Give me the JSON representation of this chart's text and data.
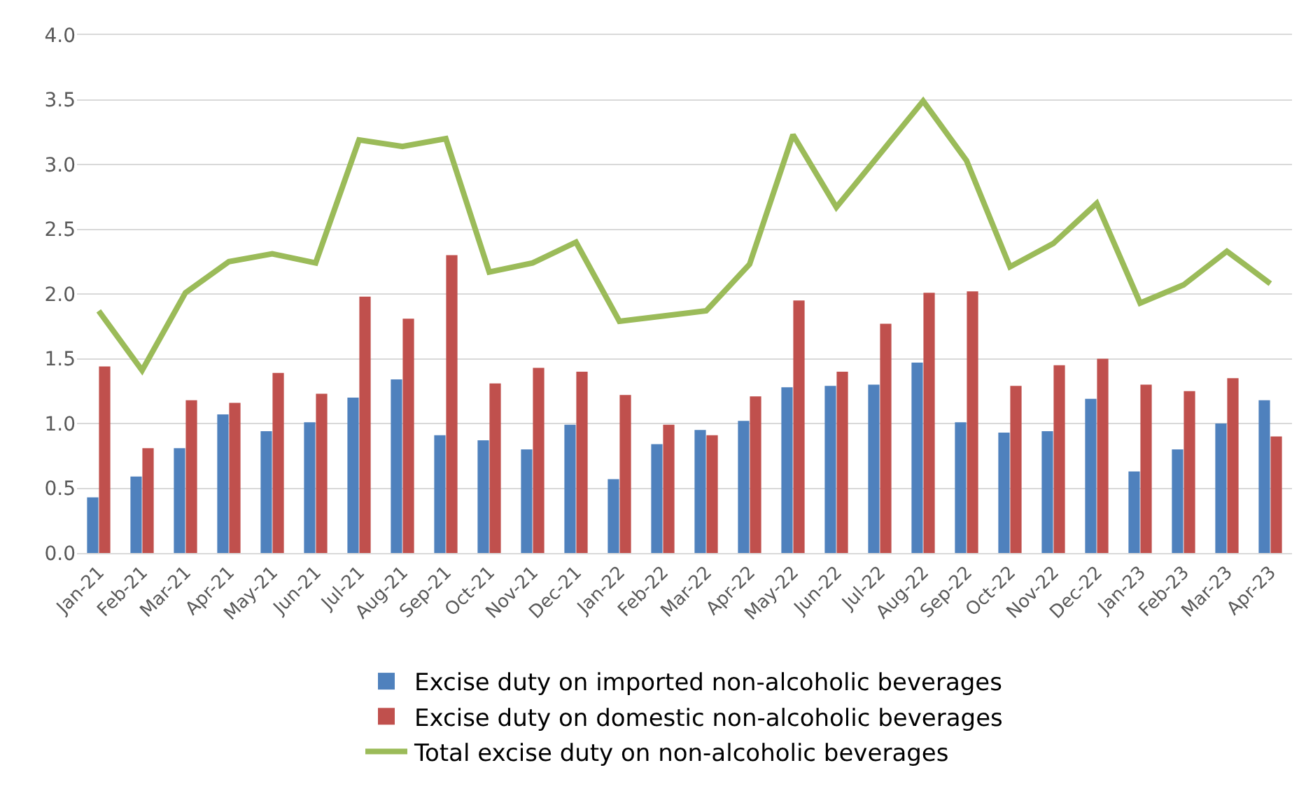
{
  "chart_data": {
    "type": "bar",
    "categories": [
      "Jan-21",
      "Feb-21",
      "Mar-21",
      "Apr-21",
      "May-21",
      "Jun-21",
      "Jul-21",
      "Aug-21",
      "Sep-21",
      "Oct-21",
      "Nov-21",
      "Dec-21",
      "Jan-22",
      "Feb-22",
      "Mar-22",
      "Apr-22",
      "May-22",
      "Jun-22",
      "Jul-22",
      "Aug-22",
      "Sep-22",
      "Oct-22",
      "Nov-22",
      "Dec-22",
      "Jan-23",
      "Feb-23",
      "Mar-23",
      "Apr-23"
    ],
    "series": [
      {
        "name": "Excise duty on imported non-alcoholic beverages",
        "color": "#4f81bd",
        "values": [
          0.43,
          0.59,
          0.81,
          1.07,
          0.94,
          1.01,
          1.2,
          1.34,
          0.91,
          0.87,
          0.8,
          0.99,
          0.57,
          0.84,
          0.95,
          1.02,
          1.28,
          1.29,
          1.3,
          1.47,
          1.01,
          0.93,
          0.94,
          1.19,
          0.63,
          0.8,
          1.0,
          1.18
        ]
      },
      {
        "name": "Excise duty on domestic non-alcoholic beverages",
        "color": "#c0504d",
        "values": [
          1.44,
          0.81,
          1.18,
          1.16,
          1.39,
          1.23,
          1.98,
          1.81,
          2.3,
          1.31,
          1.43,
          1.4,
          1.22,
          0.99,
          0.91,
          1.21,
          1.95,
          1.4,
          1.77,
          2.01,
          2.02,
          1.29,
          1.45,
          1.5,
          1.3,
          1.25,
          1.35,
          0.9
        ]
      },
      {
        "name": "Total excise duty on non-alcoholic beverages",
        "color": "#9bbb59",
        "type": "line",
        "values": [
          1.87,
          1.41,
          2.01,
          2.25,
          2.31,
          2.24,
          3.19,
          3.14,
          3.2,
          2.17,
          2.24,
          2.4,
          1.79,
          1.83,
          1.87,
          2.23,
          3.23,
          2.67,
          3.08,
          3.49,
          3.03,
          2.21,
          2.39,
          2.7,
          1.93,
          2.07,
          2.33,
          2.08
        ]
      }
    ],
    "ylim": [
      0,
      4
    ],
    "yticks": [
      {
        "value": 0,
        "label": "0.0"
      },
      {
        "value": 0.5,
        "label": "0.5"
      },
      {
        "value": 1,
        "label": "1.0"
      },
      {
        "value": 1.5,
        "label": "1.5"
      },
      {
        "value": 2,
        "label": "2.0"
      },
      {
        "value": 2.5,
        "label": "2.5"
      },
      {
        "value": 3,
        "label": "3.0"
      },
      {
        "value": 3.5,
        "label": "3.5"
      },
      {
        "value": 4,
        "label": "4.0"
      }
    ],
    "grid": "y",
    "legend": "bottom",
    "marker": "none",
    "line_style": "solid"
  }
}
